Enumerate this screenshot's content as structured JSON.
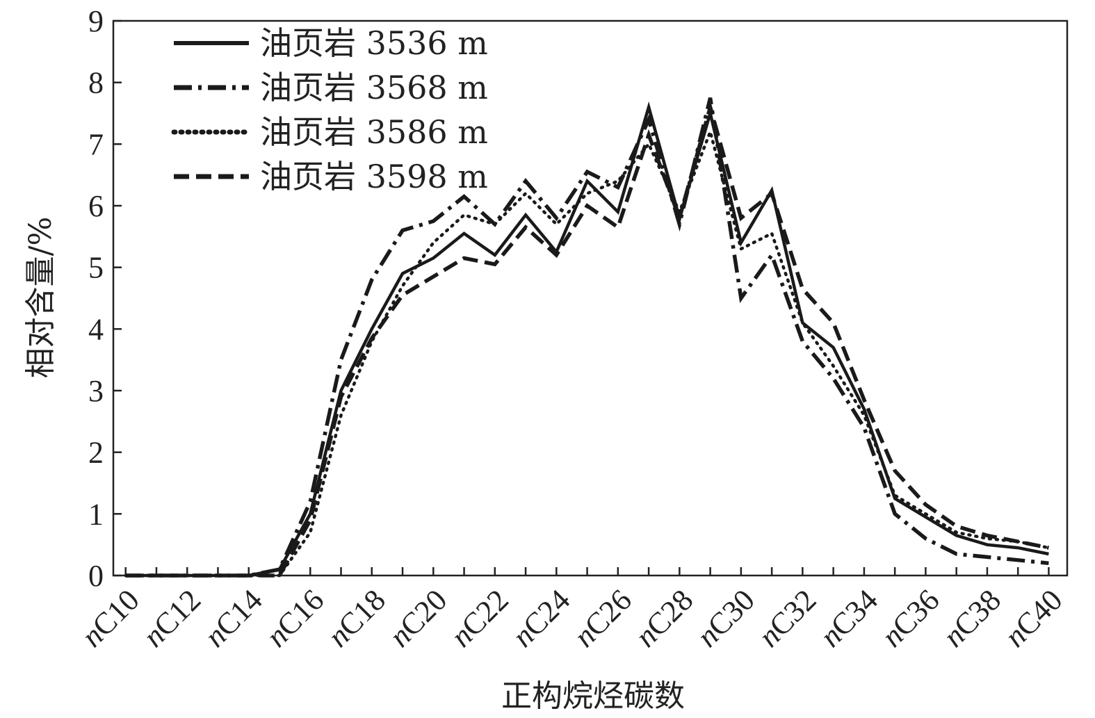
{
  "chart_data": {
    "type": "line",
    "x": [
      10,
      11,
      12,
      13,
      14,
      15,
      16,
      17,
      18,
      19,
      20,
      21,
      22,
      23,
      24,
      25,
      26,
      27,
      28,
      29,
      30,
      31,
      32,
      33,
      34,
      35,
      36,
      37,
      38,
      39,
      40
    ],
    "xtick_labels": [
      {
        "italic": "n",
        "rest": "C10"
      },
      {
        "italic": "n",
        "rest": "C12"
      },
      {
        "italic": "n",
        "rest": "C14"
      },
      {
        "italic": "n",
        "rest": "C16"
      },
      {
        "italic": "n",
        "rest": "C18"
      },
      {
        "italic": "n",
        "rest": "C20"
      },
      {
        "italic": "n",
        "rest": "C22"
      },
      {
        "italic": "n",
        "rest": "C24"
      },
      {
        "italic": "n",
        "rest": "C26"
      },
      {
        "italic": "n",
        "rest": "C28"
      },
      {
        "italic": "n",
        "rest": "C30"
      },
      {
        "italic": "n",
        "rest": "C32"
      },
      {
        "italic": "n",
        "rest": "C34"
      },
      {
        "italic": "n",
        "rest": "C36"
      },
      {
        "italic": "n",
        "rest": "C38"
      },
      {
        "italic": "n",
        "rest": "C40"
      }
    ],
    "xtick_values": [
      10,
      12,
      14,
      16,
      18,
      20,
      22,
      24,
      26,
      28,
      30,
      32,
      34,
      36,
      38,
      40
    ],
    "yticks": [
      "0",
      "1",
      "2",
      "3",
      "4",
      "5",
      "6",
      "7",
      "8",
      "9"
    ],
    "ylim": [
      0,
      9
    ],
    "xlim": [
      9.6,
      40.6
    ],
    "xlabel": "正构烷烃碳数",
    "ylabel": "相对含量/%",
    "legend_position": "top-left",
    "grid": false,
    "series": [
      {
        "name": "油页岩 3536 m",
        "style": "solid",
        "values": [
          0,
          0,
          0,
          0,
          0,
          0.1,
          1.0,
          3.0,
          4.0,
          4.9,
          5.15,
          5.55,
          5.2,
          5.85,
          5.25,
          6.4,
          5.9,
          7.6,
          5.8,
          7.5,
          5.4,
          6.25,
          4.1,
          3.7,
          2.7,
          1.25,
          0.95,
          0.65,
          0.5,
          0.45,
          0.35
        ]
      },
      {
        "name": "油页岩 3568 m",
        "style": "dashdot",
        "values": [
          0,
          0,
          0,
          0,
          0,
          0.1,
          1.2,
          3.5,
          4.8,
          5.6,
          5.75,
          6.15,
          5.7,
          6.4,
          5.8,
          6.55,
          6.3,
          7.4,
          5.7,
          7.75,
          4.5,
          5.2,
          3.8,
          3.2,
          2.4,
          1.0,
          0.6,
          0.35,
          0.3,
          0.25,
          0.2
        ]
      },
      {
        "name": "油页岩 3586 m",
        "style": "dotted",
        "values": [
          0,
          0,
          0,
          0,
          0,
          0,
          0.7,
          2.6,
          3.8,
          4.7,
          5.4,
          5.85,
          5.7,
          6.2,
          5.7,
          6.2,
          6.4,
          7.0,
          5.9,
          7.2,
          5.3,
          5.55,
          4.1,
          3.4,
          2.6,
          1.3,
          1.0,
          0.7,
          0.6,
          0.55,
          0.45
        ]
      },
      {
        "name": "油页岩 3598 m",
        "style": "dashed",
        "values": [
          0,
          0,
          0,
          0,
          0,
          0,
          0.9,
          2.9,
          3.85,
          4.55,
          4.85,
          5.15,
          5.05,
          5.65,
          5.2,
          6.0,
          5.65,
          7.15,
          5.8,
          7.6,
          5.8,
          6.2,
          4.65,
          4.1,
          2.85,
          1.7,
          1.15,
          0.8,
          0.65,
          0.55,
          0.45
        ]
      }
    ]
  }
}
